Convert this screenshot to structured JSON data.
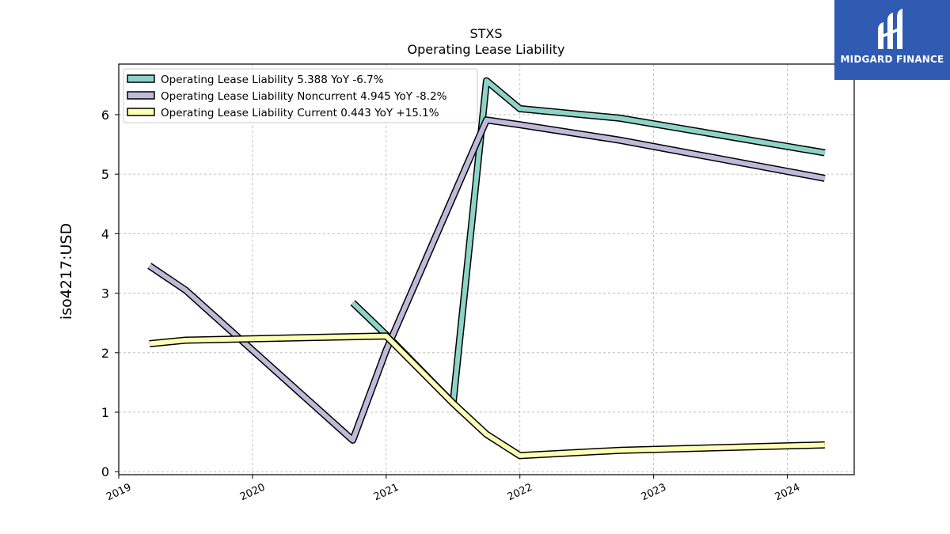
{
  "chart_data": {
    "type": "line",
    "title": "STXS",
    "subtitle": "Operating Lease Liability",
    "ylabel": "iso4217:USD",
    "xlabel": "",
    "xlim": [
      2019.0,
      2024.5
    ],
    "ylim": [
      -0.05,
      6.85
    ],
    "x_ticks": [
      "2019",
      "2020",
      "2021",
      "2022",
      "2023",
      "2024"
    ],
    "y_ticks": [
      "0",
      "1",
      "2",
      "3",
      "4",
      "5",
      "6"
    ],
    "grid": true,
    "legend_position": "top-left",
    "series": [
      {
        "name": "Operating Lease Liability  5.388 YoY -6.7%",
        "color": "#8dd3c7",
        "points": [
          [
            2020.75,
            2.84
          ],
          [
            2021.0,
            2.3
          ],
          [
            2021.5,
            1.15
          ],
          [
            2021.75,
            6.57
          ],
          [
            2022.0,
            6.1
          ],
          [
            2022.75,
            5.94
          ],
          [
            2024.28,
            5.36
          ]
        ]
      },
      {
        "name": "Operating Lease Liability Noncurrent  4.945 YoY -8.2%",
        "color": "#bebada",
        "points": [
          [
            2019.23,
            3.46
          ],
          [
            2019.5,
            3.05
          ],
          [
            2020.75,
            0.53
          ],
          [
            2021.0,
            2.04
          ],
          [
            2021.75,
            5.91
          ],
          [
            2022.0,
            5.83
          ],
          [
            2022.75,
            5.57
          ],
          [
            2024.28,
            4.93
          ]
        ]
      },
      {
        "name": "Operating Lease Liability Current  0.443 YoY +15.1%",
        "color": "#ffffb3",
        "points": [
          [
            2019.23,
            2.15
          ],
          [
            2019.5,
            2.21
          ],
          [
            2021.0,
            2.28
          ],
          [
            2021.5,
            1.15
          ],
          [
            2021.75,
            0.63
          ],
          [
            2022.0,
            0.27
          ],
          [
            2022.75,
            0.36
          ],
          [
            2024.28,
            0.45
          ]
        ]
      }
    ]
  },
  "logo": {
    "text": "MIDGARD FINANCE",
    "background": "#2f5bb3"
  }
}
